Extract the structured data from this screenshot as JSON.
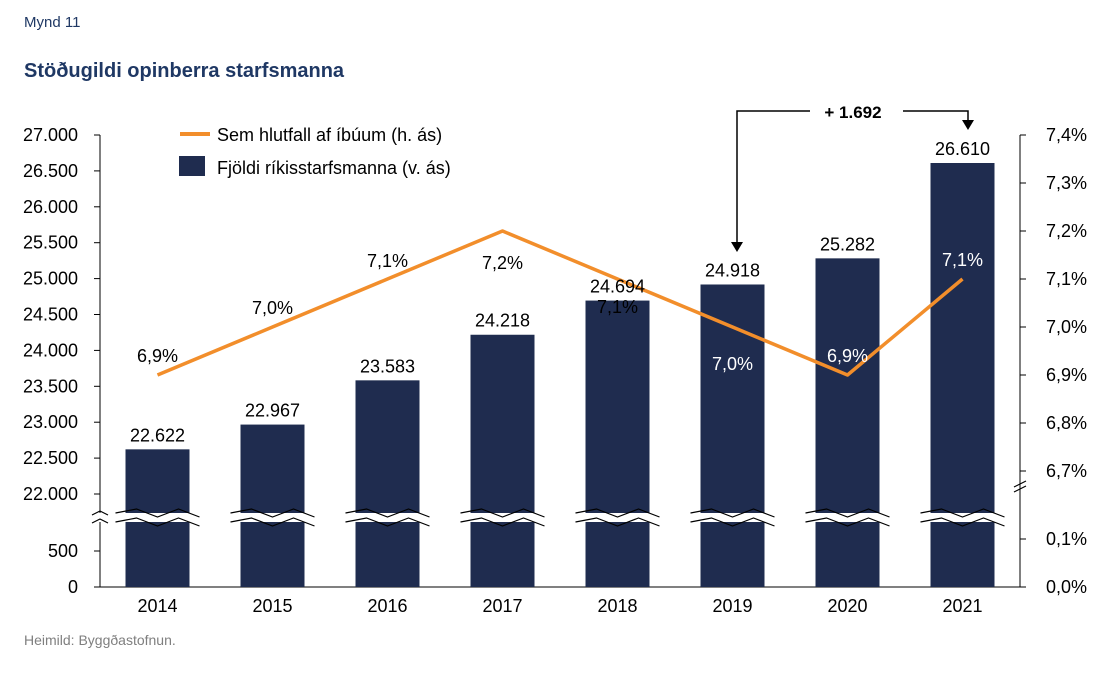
{
  "figure_label": "Mynd 11",
  "title": "Stöðugildi opinberra starfsmanna",
  "source": "Heimild: Byggðastofnun.",
  "colors": {
    "bars": "#1f2c4f",
    "line": "#f28e2b",
    "title": "#1f3864"
  },
  "chart_data": {
    "type": "bar",
    "categories": [
      "2014",
      "2015",
      "2016",
      "2017",
      "2018",
      "2019",
      "2020",
      "2021"
    ],
    "series": [
      {
        "name": "Fjöldi ríkisstarfsmanna (v. ás)",
        "type": "bar",
        "axis": "left",
        "values": [
          22622,
          22967,
          23583,
          24218,
          24694,
          24918,
          25282,
          26610
        ],
        "labels": [
          "22.622",
          "22.967",
          "23.583",
          "24.218",
          "24.694",
          "24.918",
          "25.282",
          "26.610"
        ]
      },
      {
        "name": "Sem hlutfall af íbúum (h. ás)",
        "type": "line",
        "axis": "right",
        "values": [
          6.9,
          7.0,
          7.1,
          7.2,
          7.1,
          7.0,
          6.9,
          7.1
        ],
        "labels": [
          "6,9%",
          "7,0%",
          "7,1%",
          "7,2%",
          "7,1%",
          "7,0%",
          "6,9%",
          "7,1%"
        ]
      }
    ],
    "left_axis": {
      "ticks_upper": [
        "22.000",
        "22.500",
        "23.000",
        "23.500",
        "24.000",
        "24.500",
        "25.000",
        "25.500",
        "26.000",
        "26.500",
        "27.000"
      ],
      "ticks_lower": [
        "0",
        "500"
      ],
      "range_upper": [
        22000,
        27000
      ],
      "range_lower": [
        0,
        500
      ],
      "broken": true
    },
    "right_axis": {
      "ticks_upper": [
        "6,7%",
        "6,8%",
        "6,9%",
        "7,0%",
        "7,1%",
        "7,2%",
        "7,3%",
        "7,4%"
      ],
      "ticks_lower": [
        "0,0%",
        "0,1%"
      ],
      "range_upper": [
        6.7,
        7.4
      ],
      "range_lower": [
        0.0,
        0.1
      ],
      "broken": true
    },
    "legend_position": "top-left",
    "annotation": {
      "text": "+ 1.692",
      "from": "2019",
      "to": "2021"
    }
  }
}
